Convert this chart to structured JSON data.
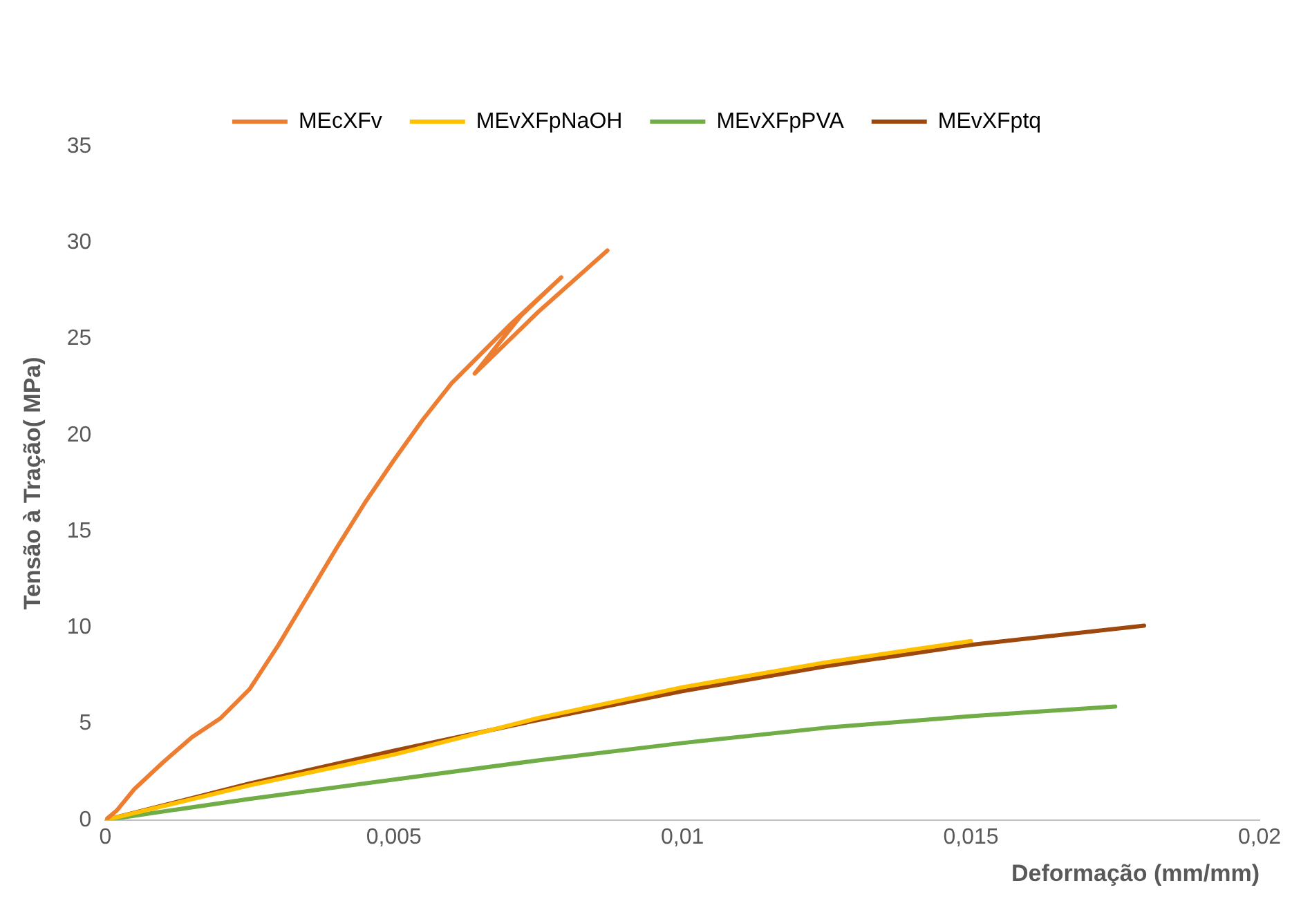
{
  "chart_data": {
    "type": "line",
    "xlabel": "Deformação (mm/mm)",
    "ylabel": "Tensão à Tração( MPa)",
    "series": [
      {
        "name": "MEcXFv",
        "color": "#ed7d31",
        "x": [
          0,
          0.0002,
          0.0005,
          0.001,
          0.0015,
          0.002,
          0.0025,
          0.003,
          0.0035,
          0.004,
          0.0045,
          0.005,
          0.0055,
          0.006,
          0.0063,
          0.007,
          0.0079,
          0.0072,
          0.0064,
          0.0075,
          0.0087
        ],
        "values": [
          0,
          0.5,
          1.6,
          3,
          4.3,
          5.3,
          6.8,
          9.1,
          11.6,
          14.1,
          16.5,
          18.7,
          20.8,
          22.7,
          23.6,
          25.7,
          28.2,
          26.2,
          23.2,
          26.4,
          29.6
        ]
      },
      {
        "name": "MEvXFpNaOH",
        "color": "#ffc000",
        "x": [
          0,
          0.0025,
          0.005,
          0.0075,
          0.01,
          0.0125,
          0.015
        ],
        "values": [
          0,
          1.8,
          3.4,
          5.3,
          6.9,
          8.2,
          9.3
        ]
      },
      {
        "name": "MEvXFpPVA",
        "color": "#70ad47",
        "x": [
          0,
          0.0025,
          0.005,
          0.0075,
          0.01,
          0.0125,
          0.015,
          0.0175
        ],
        "values": [
          0,
          1.1,
          2.1,
          3.1,
          4.0,
          4.8,
          5.4,
          5.9
        ]
      },
      {
        "name": "MEvXFptq",
        "color": "#9e480e",
        "x": [
          0,
          0.0025,
          0.005,
          0.0075,
          0.01,
          0.0125,
          0.015,
          0.018
        ],
        "values": [
          0,
          1.9,
          3.6,
          5.2,
          6.7,
          8.0,
          9.1,
          10.1
        ]
      }
    ],
    "xlim": [
      0,
      0.02
    ],
    "xticks": [
      0,
      {
        "value": 0.005,
        "label": "0,005"
      },
      {
        "value": 0.01,
        "label": "0,01"
      },
      {
        "value": 0.015,
        "label": "0,015"
      },
      {
        "value": 0.02,
        "label": "0,02"
      }
    ],
    "ylim": [
      0,
      35
    ],
    "yticks": [
      0,
      5,
      10,
      15,
      20,
      25,
      30,
      35
    ],
    "grid": false,
    "legend": "top",
    "marker": "none",
    "line_style": "solid"
  }
}
